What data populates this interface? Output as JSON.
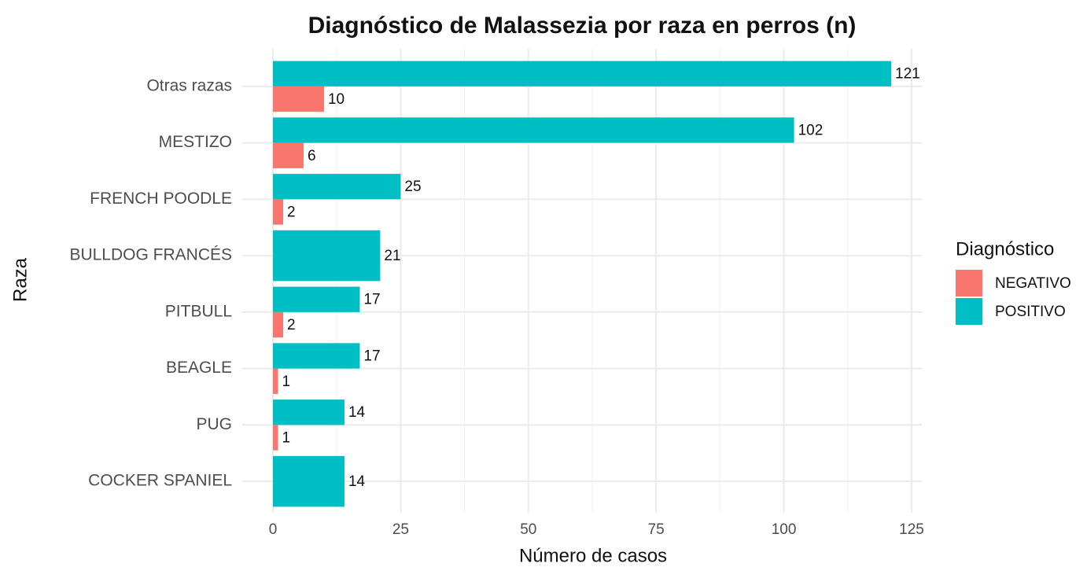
{
  "chart_data": {
    "type": "bar",
    "orientation": "horizontal",
    "title": "Diagnóstico de Malassezia por raza en perros (n)",
    "x_label": "Número de casos",
    "y_label": "Raza",
    "legend_title": "Diagnóstico",
    "legend_position": "right",
    "grid": true,
    "categories": [
      "Otras razas",
      "MESTIZO",
      "FRENCH POODLE",
      "BULLDOG FRANCÉS",
      "PITBULL",
      "BEAGLE",
      "PUG",
      "COCKER SPANIEL"
    ],
    "series": [
      {
        "name": "NEGATIVO",
        "color": "#F8766D",
        "values": [
          10,
          6,
          2,
          null,
          2,
          1,
          1,
          null
        ]
      },
      {
        "name": "POSITIVO",
        "color": "#00BFC4",
        "values": [
          121,
          102,
          25,
          21,
          17,
          17,
          14,
          14
        ]
      }
    ],
    "xlim": [
      -6.05,
      127.05
    ],
    "xticks": [
      0,
      25,
      50,
      75,
      100,
      125
    ]
  }
}
